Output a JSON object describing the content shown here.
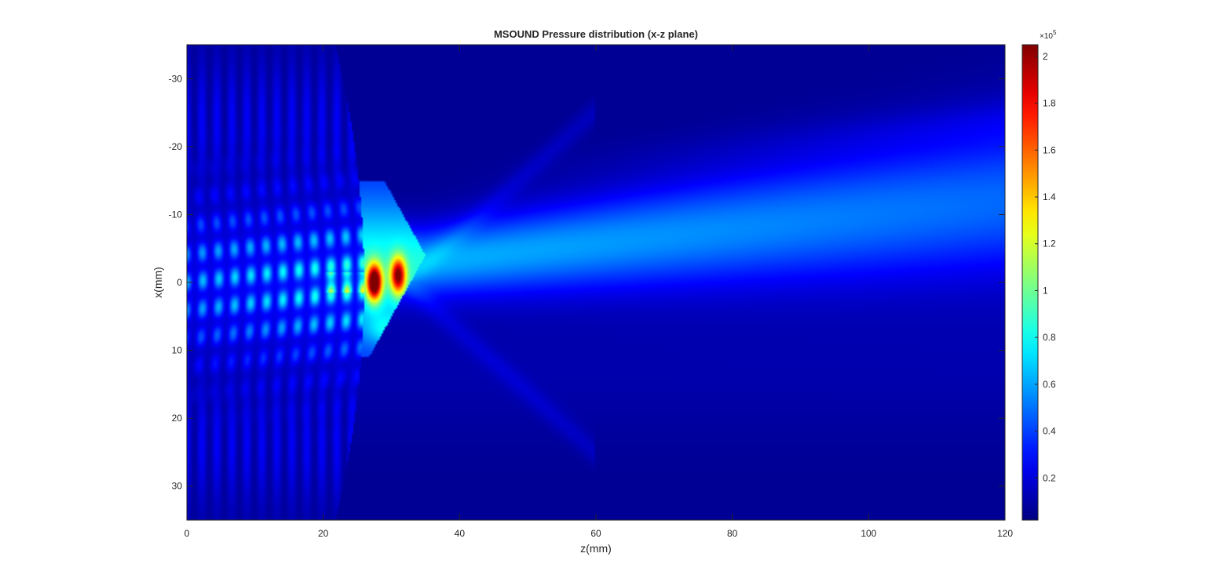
{
  "chart_data": {
    "type": "heatmap",
    "title": "MSOUND Pressure distribution (x-z plane)",
    "xlabel": "z(mm)",
    "ylabel": "x(mm)",
    "xlim": [
      0,
      120
    ],
    "ylim": [
      -35,
      35
    ],
    "y_reversed": true,
    "x_ticks": [
      0,
      20,
      40,
      60,
      80,
      100,
      120
    ],
    "y_ticks": [
      -30,
      -20,
      -10,
      0,
      10,
      20,
      30
    ],
    "colormap": "jet",
    "colorbar": {
      "range": [
        0.02,
        2.05
      ],
      "ticks": [
        0.2,
        0.4,
        0.6,
        0.8,
        1,
        1.2,
        1.4,
        1.6,
        1.8,
        2
      ],
      "multiplier_base": "10",
      "multiplier_exponent": "5"
    },
    "field_features": {
      "near_field_region_z": [
        0,
        26
      ],
      "lens_interface_z": 26,
      "focal_peak": {
        "z": 27.5,
        "x": 0,
        "value": 2.05
      },
      "secondary_peak": {
        "z": 31,
        "x": 0,
        "value": 1.9
      },
      "beam_center_far_x": -12,
      "far_field_level": 0.45
    }
  }
}
